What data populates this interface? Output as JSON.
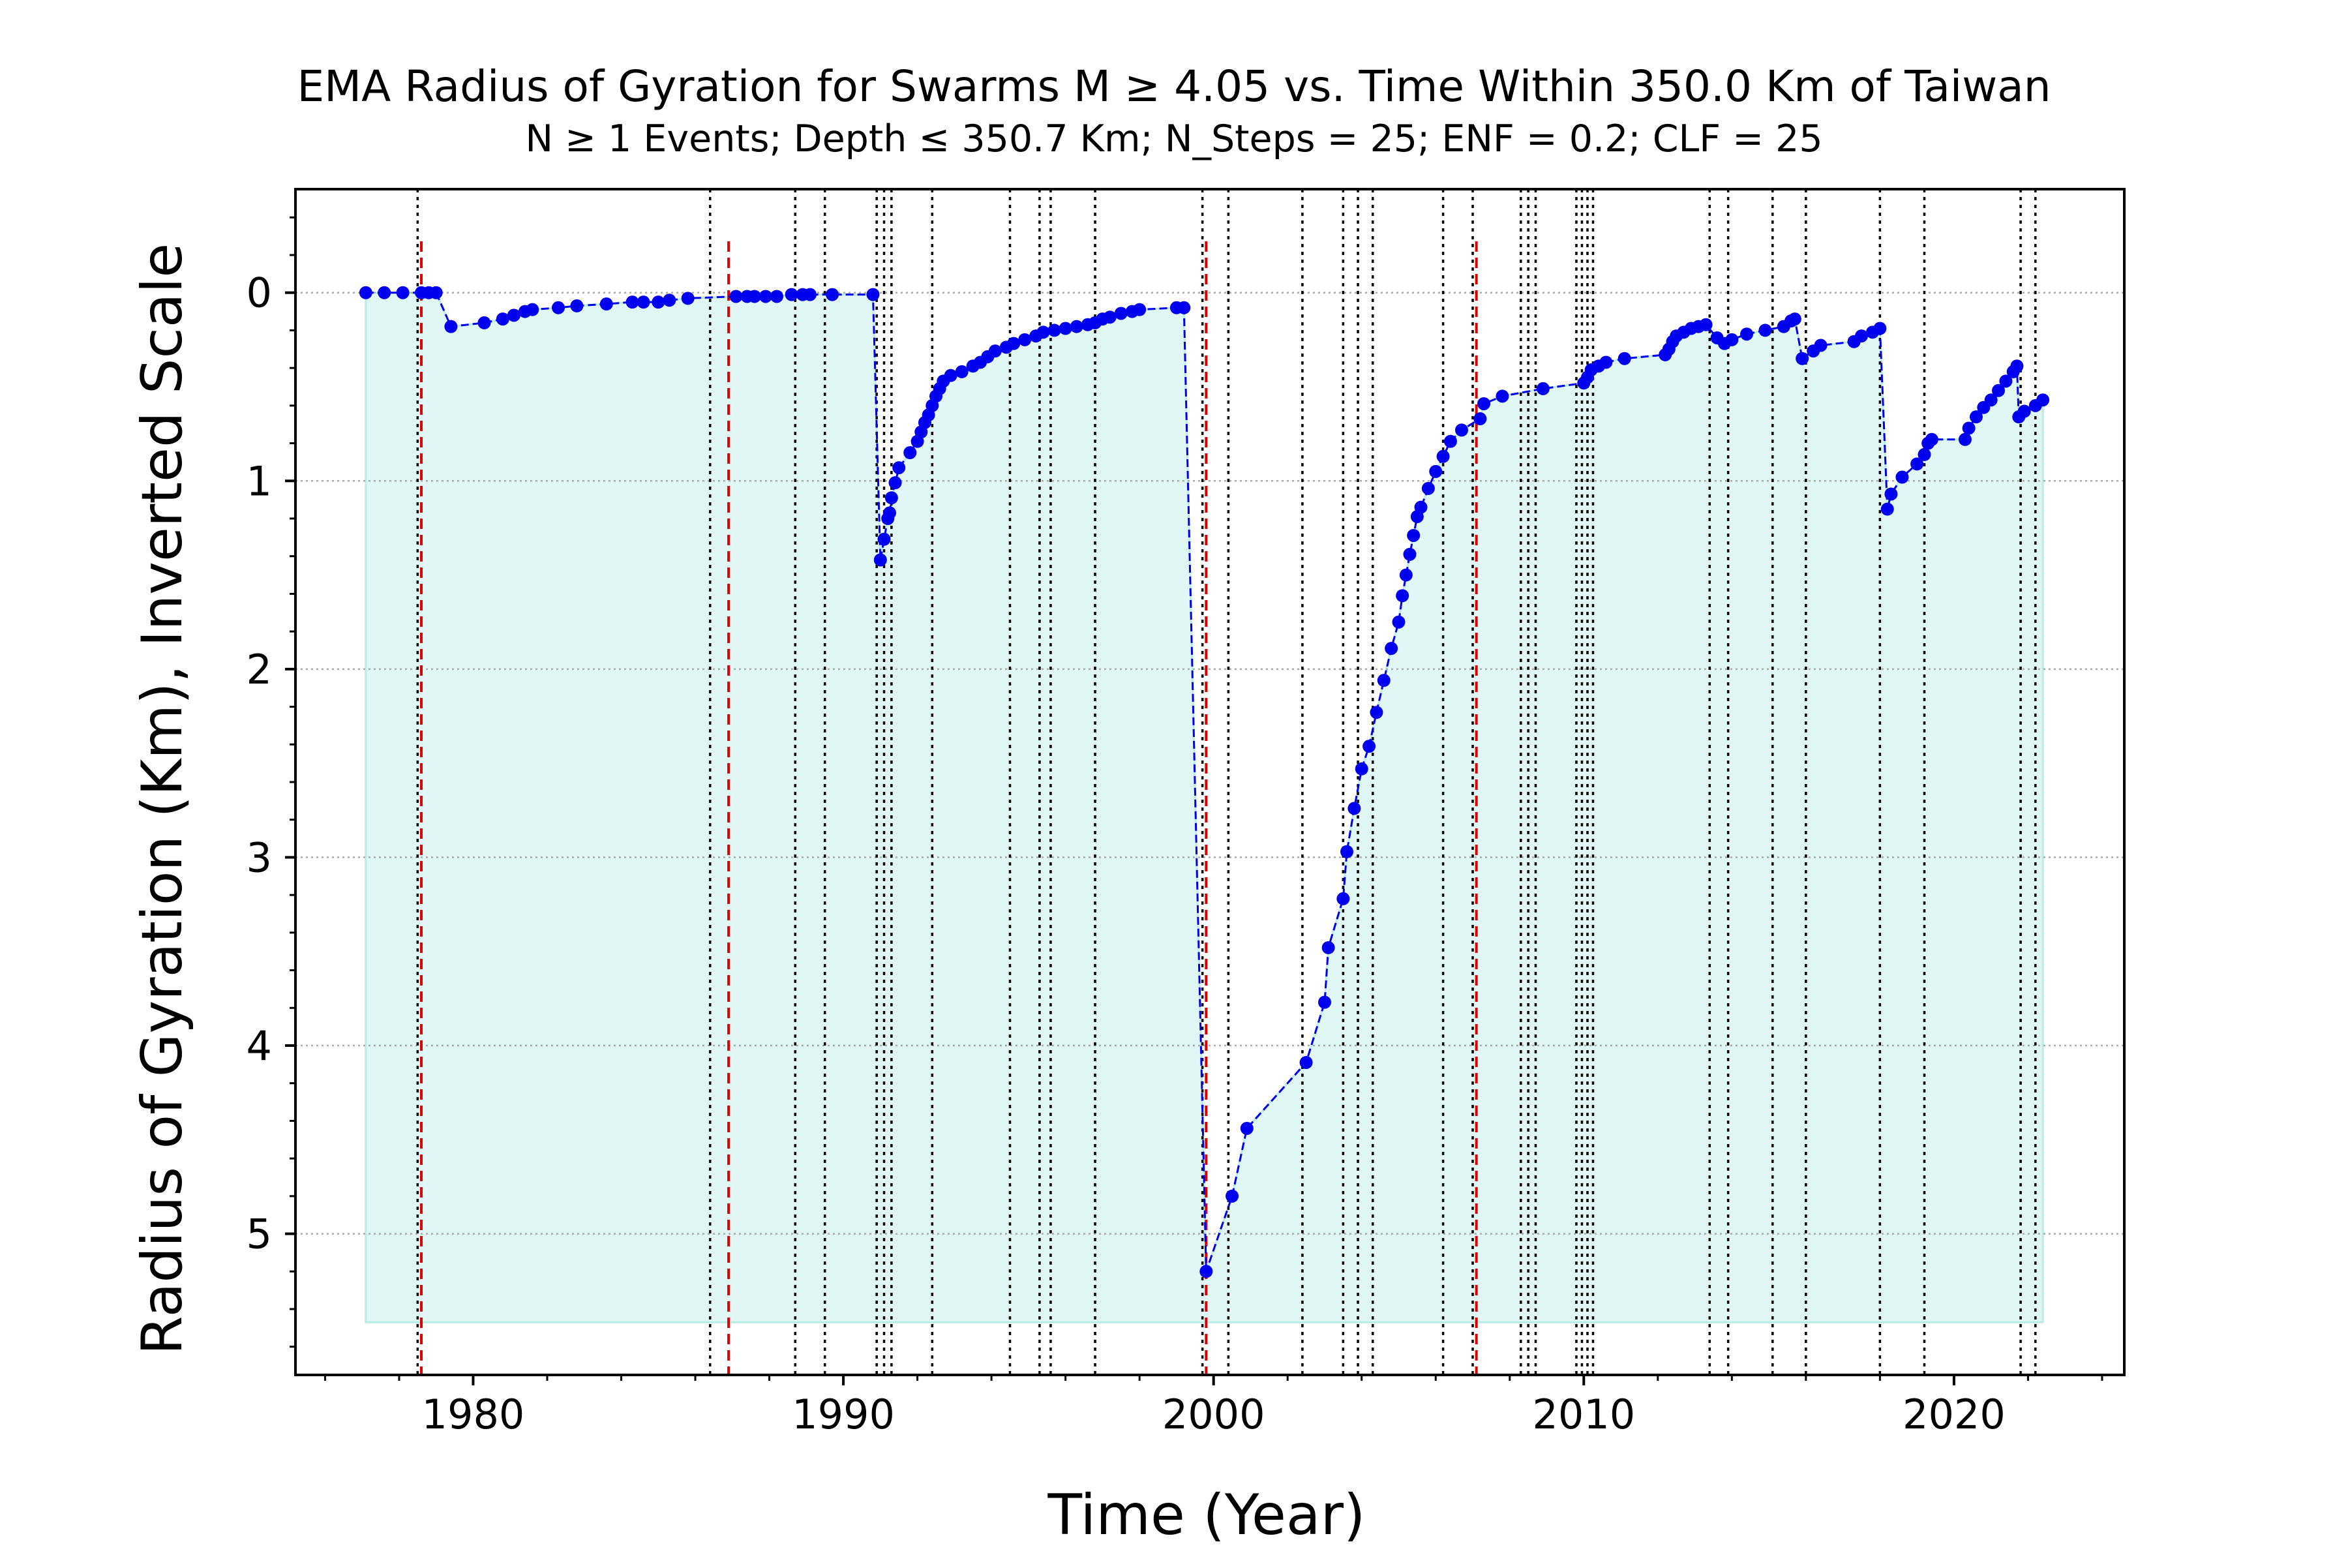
{
  "chart_data": {
    "type": "line",
    "title": "EMA Radius of Gyration for Swarms M ≥ 4.05 vs. Time Within 350.0 Km of Taiwan",
    "subtitle": "N ≥ 1 Events;  Depth ≤ 350.7 Km; N_Steps = 25; ENF = 0.2; CLF = 25",
    "xlabel": "Time (Year)",
    "ylabel": "Radius of Gyration (Km), Inverted Scale",
    "xlim": [
      1975.2,
      2024.6
    ],
    "ylim": [
      5.75,
      -0.55
    ],
    "y_inverted": true,
    "fill_baseline": 5.47,
    "x_ticks": [
      1980,
      1990,
      2000,
      2010,
      2020
    ],
    "x_tick_labels": [
      "1980",
      "1990",
      "2000",
      "2010",
      "2020"
    ],
    "y_ticks": [
      0,
      1,
      2,
      3,
      4,
      5
    ],
    "y_tick_labels": [
      "0",
      "1",
      "2",
      "3",
      "4",
      "5"
    ],
    "grid": "horizontal dotted",
    "colors": {
      "series": "#0000ee",
      "fill": "#e0f7f5",
      "major_event_line": "#dd0000",
      "minor_event_line": "#000000",
      "grid": "#aaaaaa"
    },
    "series": [
      {
        "x": [
          1977.1,
          1977.6,
          1978.1,
          1978.6,
          1978.8,
          1979.0,
          1979.4,
          1980.3,
          1980.8,
          1981.1,
          1981.4,
          1981.6,
          1982.3,
          1982.8,
          1983.6,
          1984.3,
          1984.6,
          1985.0,
          1985.3,
          1985.8,
          1987.1,
          1987.4,
          1987.6,
          1987.9,
          1988.2,
          1988.6,
          1988.9,
          1989.1,
          1989.7,
          1990.8,
          1991.0,
          1991.1,
          1991.2,
          1991.25,
          1991.3,
          1991.4,
          1991.5,
          1991.8,
          1992.0,
          1992.1,
          1992.2,
          1992.3,
          1992.4,
          1992.5,
          1992.6,
          1992.7,
          1992.9,
          1993.2,
          1993.5,
          1993.7,
          1993.9,
          1994.1,
          1994.4,
          1994.6,
          1994.9,
          1995.2,
          1995.4,
          1995.7,
          1996.0,
          1996.3,
          1996.6,
          1996.8,
          1997.0,
          1997.2,
          1997.5,
          1997.8,
          1998.0,
          1999.0,
          1999.2,
          1999.8,
          2000.5,
          2000.9,
          2002.5,
          2003.0,
          2003.1,
          2003.5,
          2003.6,
          2003.8,
          2004.0,
          2004.2,
          2004.4,
          2004.6,
          2004.8,
          2005.0,
          2005.1,
          2005.2,
          2005.3,
          2005.4,
          2005.5,
          2005.6,
          2005.8,
          2006.0,
          2006.2,
          2006.4,
          2006.7,
          2007.2,
          2007.3,
          2007.8,
          2008.9,
          2010.0,
          2010.1,
          2010.2,
          2010.4,
          2010.6,
          2011.1,
          2012.2,
          2012.3,
          2012.4,
          2012.5,
          2012.7,
          2012.9,
          2013.1,
          2013.3,
          2013.6,
          2013.8,
          2014.0,
          2014.4,
          2014.9,
          2015.4,
          2015.6,
          2015.7,
          2015.9,
          2016.2,
          2016.4,
          2017.3,
          2017.5,
          2017.8,
          2018.0,
          2018.2,
          2018.3,
          2018.6,
          2019.0,
          2019.2,
          2019.3,
          2019.4,
          2020.3,
          2020.4,
          2020.6,
          2020.8,
          2021.0,
          2021.2,
          2021.4,
          2021.6,
          2021.7,
          2021.75,
          2021.9,
          2022.2,
          2022.4
        ],
        "y": [
          0.0,
          0.0,
          0.0,
          0.0,
          0.0,
          0.0,
          0.18,
          0.16,
          0.14,
          0.12,
          0.1,
          0.09,
          0.08,
          0.07,
          0.06,
          0.05,
          0.05,
          0.05,
          0.04,
          0.03,
          0.02,
          0.02,
          0.02,
          0.02,
          0.02,
          0.01,
          0.01,
          0.01,
          0.01,
          0.01,
          1.42,
          1.31,
          1.2,
          1.17,
          1.09,
          1.01,
          0.93,
          0.85,
          0.79,
          0.74,
          0.69,
          0.65,
          0.6,
          0.55,
          0.51,
          0.47,
          0.44,
          0.42,
          0.39,
          0.37,
          0.34,
          0.31,
          0.29,
          0.27,
          0.25,
          0.23,
          0.21,
          0.2,
          0.19,
          0.18,
          0.17,
          0.16,
          0.14,
          0.13,
          0.11,
          0.1,
          0.09,
          0.08,
          0.08,
          5.2,
          4.8,
          4.44,
          4.09,
          3.77,
          3.48,
          3.22,
          2.97,
          2.74,
          2.53,
          2.41,
          2.23,
          2.06,
          1.89,
          1.75,
          1.61,
          1.5,
          1.39,
          1.29,
          1.19,
          1.14,
          1.04,
          0.95,
          0.87,
          0.79,
          0.73,
          0.67,
          0.59,
          0.55,
          0.51,
          0.48,
          0.45,
          0.41,
          0.39,
          0.37,
          0.35,
          0.33,
          0.3,
          0.26,
          0.23,
          0.21,
          0.19,
          0.18,
          0.17,
          0.24,
          0.27,
          0.25,
          0.22,
          0.2,
          0.18,
          0.15,
          0.14,
          0.35,
          0.31,
          0.28,
          0.26,
          0.23,
          0.21,
          0.19,
          1.15,
          1.07,
          0.98,
          0.91,
          0.86,
          0.8,
          0.78,
          0.78,
          0.72,
          0.66,
          0.61,
          0.57,
          0.52,
          0.47,
          0.42,
          0.39,
          0.66,
          0.63,
          0.6,
          0.57
        ]
      }
    ],
    "event_lines": {
      "major": [
        1978.6,
        1986.9,
        1999.8,
        2007.1
      ],
      "minor": [
        1978.5,
        1986.4,
        1988.7,
        1989.5,
        1990.9,
        1991.1,
        1991.3,
        1992.4,
        1994.5,
        1995.3,
        1995.6,
        1996.8,
        1999.7,
        2000.4,
        2002.4,
        2003.5,
        2003.9,
        2004.3,
        2006.2,
        2007.0,
        2008.3,
        2008.5,
        2008.7,
        2009.8,
        2009.95,
        2010.1,
        2010.25,
        2013.4,
        2013.9,
        2015.1,
        2016.0,
        2018.0,
        2019.2,
        2021.8,
        2022.2
      ]
    }
  }
}
